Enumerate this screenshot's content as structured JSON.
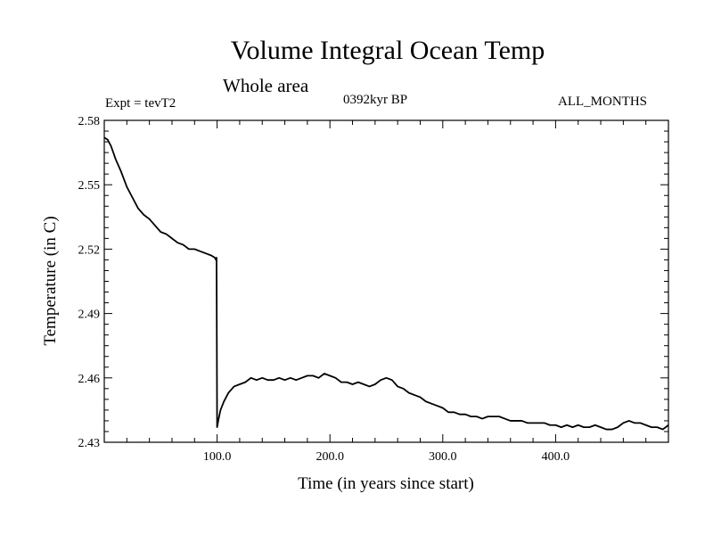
{
  "header": {
    "title": "Volume Integral Ocean Temp",
    "subtitle": "Whole area",
    "experiment": "Expt = tevT2",
    "period": "0392kyr BP",
    "months": "ALL_MONTHS"
  },
  "chart_data": {
    "type": "line",
    "title": "Volume Integral Ocean Temp",
    "subtitle": "Whole area",
    "xlabel": "Time (in years since start)",
    "ylabel": "Temperature (in C)",
    "xlim": [
      0,
      500
    ],
    "ylim": [
      2.43,
      2.58
    ],
    "xticks": [
      100,
      200,
      300,
      400
    ],
    "xtick_labels": [
      "100.0",
      "200.0",
      "300.0",
      "400.0"
    ],
    "yticks": [
      2.43,
      2.46,
      2.49,
      2.52,
      2.55,
      2.58
    ],
    "ytick_labels": [
      "2.43",
      "2.46",
      "2.49",
      "2.52",
      "2.55",
      "2.58"
    ],
    "grid": false,
    "series": [
      {
        "color": "#000000",
        "x": [
          0,
          3,
          6,
          10,
          15,
          20,
          25,
          30,
          35,
          40,
          45,
          50,
          55,
          60,
          65,
          70,
          75,
          80,
          85,
          90,
          95,
          98,
          99,
          99.5,
          100,
          101,
          103,
          106,
          110,
          115,
          120,
          125,
          130,
          135,
          140,
          145,
          150,
          155,
          160,
          165,
          170,
          175,
          180,
          185,
          190,
          195,
          200,
          205,
          210,
          215,
          220,
          225,
          230,
          235,
          240,
          245,
          250,
          255,
          260,
          265,
          270,
          275,
          280,
          285,
          290,
          295,
          300,
          305,
          310,
          315,
          320,
          325,
          330,
          335,
          340,
          345,
          350,
          355,
          360,
          365,
          370,
          375,
          380,
          385,
          390,
          395,
          400,
          405,
          410,
          415,
          420,
          425,
          430,
          435,
          440,
          445,
          450,
          455,
          460,
          465,
          470,
          475,
          480,
          485,
          490,
          495,
          500
        ],
        "y": [
          2.572,
          2.571,
          2.568,
          2.562,
          2.556,
          2.549,
          2.544,
          2.539,
          2.536,
          2.534,
          2.531,
          2.528,
          2.527,
          2.525,
          2.523,
          2.522,
          2.52,
          2.52,
          2.519,
          2.518,
          2.517,
          2.516,
          2.515,
          2.516,
          2.437,
          2.44,
          2.445,
          2.449,
          2.453,
          2.456,
          2.457,
          2.458,
          2.46,
          2.459,
          2.46,
          2.459,
          2.459,
          2.46,
          2.459,
          2.46,
          2.459,
          2.46,
          2.461,
          2.461,
          2.46,
          2.462,
          2.461,
          2.46,
          2.458,
          2.458,
          2.457,
          2.458,
          2.457,
          2.456,
          2.457,
          2.459,
          2.46,
          2.459,
          2.456,
          2.455,
          2.453,
          2.452,
          2.451,
          2.449,
          2.448,
          2.447,
          2.446,
          2.444,
          2.444,
          2.443,
          2.443,
          2.442,
          2.442,
          2.441,
          2.442,
          2.442,
          2.442,
          2.441,
          2.44,
          2.44,
          2.44,
          2.439,
          2.439,
          2.439,
          2.439,
          2.438,
          2.438,
          2.437,
          2.438,
          2.437,
          2.438,
          2.437,
          2.437,
          2.438,
          2.437,
          2.436,
          2.436,
          2.437,
          2.439,
          2.44,
          2.439,
          2.439,
          2.438,
          2.437,
          2.437,
          2.436,
          2.438
        ]
      }
    ]
  }
}
